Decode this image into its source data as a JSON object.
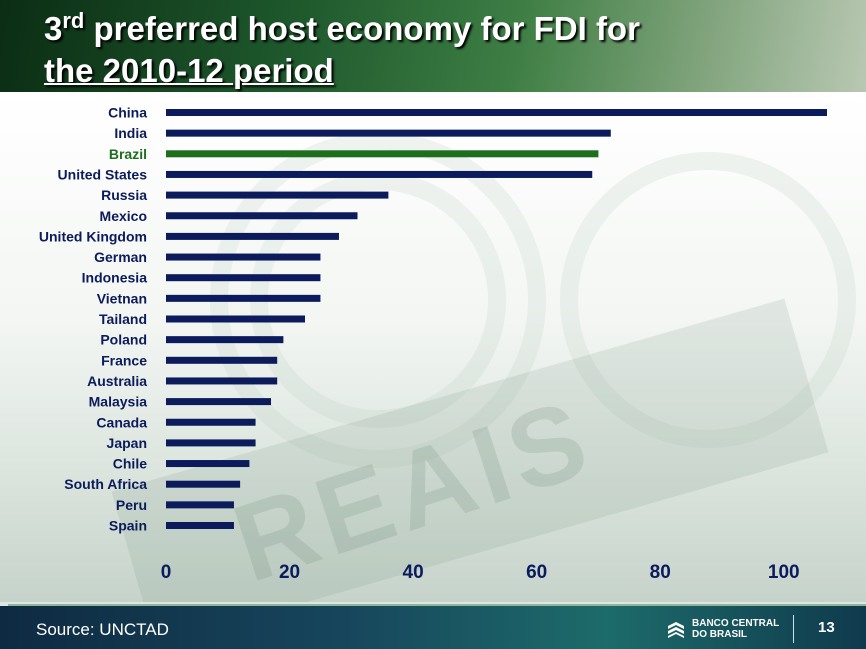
{
  "slide": {
    "title_line1_main": "3",
    "title_line1_sup": "rd",
    "title_line1_rest": " preferred host economy for FDI for",
    "title_line2": "the 2010-12 period",
    "source": "Source: UNCTAD",
    "page_number": "13",
    "logo_text": "BANCO CENTRAL\nDO BRASIL",
    "logo_icon": "bank-logo-icon"
  },
  "colors": {
    "bar_default": "#0b1b5b",
    "bar_highlight": "#1e6e1e",
    "label_default": "#0b1b5b",
    "label_highlight": "#1e6e1e"
  },
  "chart_data": {
    "type": "bar",
    "orientation": "horizontal",
    "categories": [
      "China",
      "India",
      "Brazil",
      "United States",
      "Russia",
      "Mexico",
      "United Kingdom",
      "German",
      "Indonesia",
      "Vietnan",
      "Tailand",
      "Poland",
      "France",
      "Australia",
      "Malaysia",
      "Canada",
      "Japan",
      "Chile",
      "South Africa",
      "Peru",
      "Spain"
    ],
    "values": [
      107,
      72,
      70,
      69,
      36,
      31,
      28,
      25,
      25,
      25,
      22.5,
      19,
      18,
      18,
      17,
      14.5,
      14.5,
      13.5,
      12,
      11,
      11
    ],
    "highlight": "Brazil",
    "xlim": [
      0,
      107
    ],
    "xticks": [
      0,
      20,
      40,
      60,
      80,
      100
    ],
    "grid": false
  }
}
